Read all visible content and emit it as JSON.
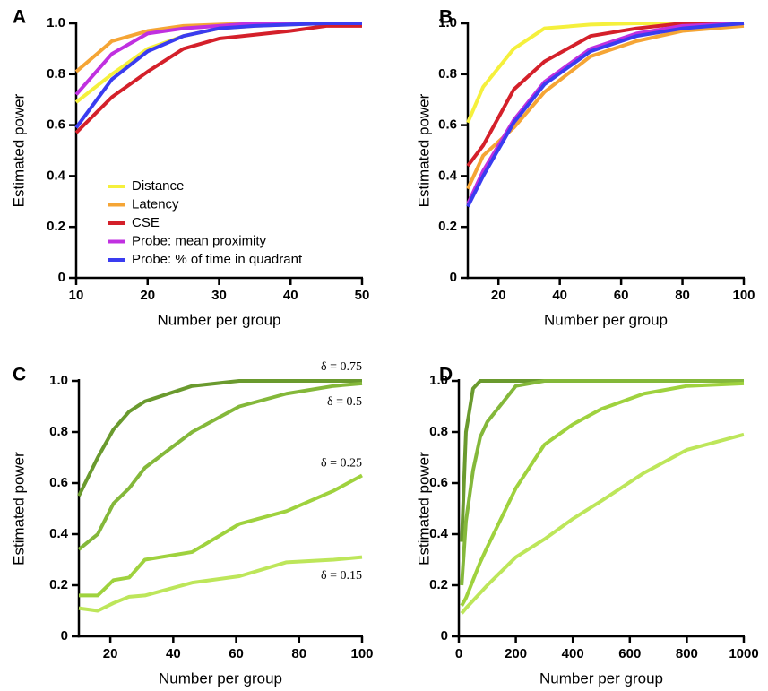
{
  "chart_data": [
    {
      "type": "line",
      "panel_label": "A",
      "xlabel": "Number per group",
      "ylabel": "Estimated power",
      "x": [
        10,
        15,
        20,
        25,
        30,
        35,
        40,
        45,
        50
      ],
      "series": [
        {
          "name": "Distance",
          "color": "#f5f03c",
          "values": [
            0.69,
            0.8,
            0.9,
            0.95,
            0.98,
            0.99,
            0.995,
            1.0,
            1.0
          ]
        },
        {
          "name": "Latency",
          "color": "#f5a535",
          "values": [
            0.81,
            0.93,
            0.97,
            0.99,
            0.995,
            1.0,
            1.0,
            1.0,
            1.0
          ]
        },
        {
          "name": "CSE",
          "color": "#d4202a",
          "values": [
            0.57,
            0.71,
            0.81,
            0.9,
            0.94,
            0.955,
            0.97,
            0.99,
            0.99
          ]
        },
        {
          "name": "Probe: mean proximity",
          "color": "#c030e0",
          "values": [
            0.72,
            0.88,
            0.96,
            0.98,
            0.99,
            1.0,
            1.0,
            1.0,
            1.0
          ]
        },
        {
          "name": "Probe: % of time in quadrant",
          "color": "#3a3cf0",
          "values": [
            0.59,
            0.78,
            0.89,
            0.95,
            0.98,
            0.99,
            0.995,
            1.0,
            1.0
          ]
        }
      ],
      "xlim": [
        10,
        50
      ],
      "xticks": [
        10,
        20,
        30,
        40,
        50
      ],
      "ylim": [
        0,
        1
      ],
      "yticks": [
        0,
        0.2,
        0.4,
        0.6,
        0.8,
        {
          "value": 1,
          "label": "1.0"
        }
      ],
      "legend": "lower left"
    },
    {
      "type": "line",
      "panel_label": "B",
      "xlabel": "Number per group",
      "ylabel": "Estimated power",
      "x": [
        10,
        15,
        25,
        35,
        50,
        65,
        80,
        100
      ],
      "series": [
        {
          "color": "#f5f03c",
          "values": [
            0.61,
            0.75,
            0.9,
            0.98,
            0.995,
            1.0,
            1.0,
            1.0
          ]
        },
        {
          "color": "#f5a535",
          "values": [
            0.35,
            0.48,
            0.59,
            0.73,
            0.87,
            0.93,
            0.97,
            0.99
          ]
        },
        {
          "color": "#d4202a",
          "values": [
            0.44,
            0.52,
            0.74,
            0.85,
            0.95,
            0.98,
            1.0,
            1.0
          ]
        },
        {
          "color": "#c030e0",
          "values": [
            0.29,
            0.42,
            0.62,
            0.77,
            0.9,
            0.96,
            0.99,
            1.0
          ]
        },
        {
          "color": "#3a3cf0",
          "values": [
            0.28,
            0.4,
            0.61,
            0.76,
            0.89,
            0.95,
            0.98,
            1.0
          ]
        }
      ],
      "xlim": [
        10,
        100
      ],
      "xticks": [
        20,
        40,
        60,
        80,
        100
      ],
      "ylim": [
        0,
        1
      ],
      "yticks": [
        0,
        0.2,
        0.4,
        0.6,
        0.8,
        {
          "value": 1,
          "label": "1.0"
        }
      ]
    },
    {
      "type": "line",
      "panel_label": "C",
      "xlabel": "Number per group",
      "ylabel": "Estimated power",
      "x": [
        10,
        16,
        21,
        26,
        31,
        46,
        61,
        76,
        91,
        100
      ],
      "series": [
        {
          "name": "δ = 0.75",
          "color": "#6a9a2e",
          "values": [
            0.55,
            0.7,
            0.81,
            0.88,
            0.92,
            0.98,
            1.0,
            1.0,
            1.0,
            1.0
          ]
        },
        {
          "name": "δ = 0.5",
          "color": "#84b83a",
          "values": [
            0.34,
            0.4,
            0.52,
            0.58,
            0.66,
            0.8,
            0.9,
            0.95,
            0.98,
            0.99
          ]
        },
        {
          "name": "δ = 0.25",
          "color": "#9fd23e",
          "values": [
            0.16,
            0.16,
            0.22,
            0.23,
            0.3,
            0.33,
            0.44,
            0.49,
            0.57,
            0.63
          ]
        },
        {
          "name": "δ = 0.15",
          "color": "#bde65a",
          "values": [
            0.11,
            0.1,
            0.13,
            0.155,
            0.16,
            0.21,
            0.235,
            0.29,
            0.3,
            0.31
          ]
        }
      ],
      "xlim": [
        10,
        100
      ],
      "xticks": [
        20,
        40,
        60,
        80,
        100
      ],
      "ylim": [
        0,
        1
      ],
      "yticks": [
        0,
        0.2,
        0.4,
        0.6,
        0.8,
        {
          "value": 1,
          "label": "1.0"
        }
      ],
      "legend": "line end"
    },
    {
      "type": "line",
      "panel_label": "D",
      "xlabel": "Number per group",
      "ylabel": "Estimated power",
      "x": [
        10,
        25,
        50,
        75,
        100,
        200,
        300,
        400,
        500,
        650,
        800,
        1000
      ],
      "series": [
        {
          "color": "#6a9a2e",
          "values": [
            0.37,
            0.8,
            0.97,
            1.0,
            1.0,
            1.0,
            1.0,
            1.0,
            1.0,
            1.0,
            1.0,
            1.0
          ]
        },
        {
          "color": "#84b83a",
          "values": [
            0.2,
            0.45,
            0.65,
            0.78,
            0.84,
            0.98,
            1.0,
            1.0,
            1.0,
            1.0,
            1.0,
            1.0
          ]
        },
        {
          "color": "#9fd23e",
          "values": [
            0.12,
            0.15,
            0.22,
            0.29,
            0.35,
            0.58,
            0.75,
            0.83,
            0.89,
            0.95,
            0.98,
            0.99
          ]
        },
        {
          "color": "#bde65a",
          "values": [
            0.09,
            0.11,
            0.14,
            0.17,
            0.2,
            0.31,
            0.38,
            0.46,
            0.53,
            0.64,
            0.73,
            0.79
          ]
        }
      ],
      "xlim": [
        0,
        1000
      ],
      "xticks": [
        0,
        200,
        400,
        600,
        800,
        1000
      ],
      "ylim": [
        0,
        1
      ],
      "yticks": [
        0,
        0.2,
        0.4,
        0.6,
        0.8,
        {
          "value": 1,
          "label": "1.0"
        }
      ]
    }
  ]
}
